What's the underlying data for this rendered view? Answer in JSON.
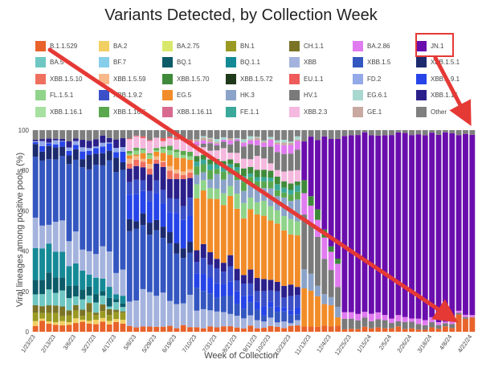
{
  "chart_data": {
    "type": "stacked-bar",
    "title": "Variants Detected, by Collection Week",
    "xlabel": "Week of Collection",
    "ylabel": "Viral lineages among positive pools (%)",
    "ylim": [
      0,
      100
    ],
    "yticks": [
      0,
      20,
      40,
      60,
      80,
      100
    ],
    "xtick_labels": [
      "1/23/23",
      "2/13/23",
      "3/6/23",
      "3/27/23",
      "4/17/23",
      "5/8/23",
      "5/29/23",
      "6/19/23",
      "7/10/23",
      "7/31/23",
      "8/21/23",
      "9/11/23",
      "10/2/23",
      "10/23/23",
      "11/13/23",
      "12/4/23",
      "12/25/23",
      "1/15/24",
      "2/5/24",
      "2/26/24",
      "3/18/24",
      "4/8/24",
      "4/22/24"
    ],
    "num_weeks": 66,
    "legend": [
      {
        "name": "B.1.1.529",
        "color": "#e8622a"
      },
      {
        "name": "BA.2",
        "color": "#f2cf63"
      },
      {
        "name": "BA.2.75",
        "color": "#d9e86a"
      },
      {
        "name": "BN.1",
        "color": "#9a9a23"
      },
      {
        "name": "CH.1.1",
        "color": "#7a7326"
      },
      {
        "name": "BA.2.86",
        "color": "#e07bf0"
      },
      {
        "name": "JN.1",
        "color": "#6a0dad"
      },
      {
        "name": "BA.5",
        "color": "#6fc7c3"
      },
      {
        "name": "BF.7",
        "color": "#87ceeb"
      },
      {
        "name": "BQ.1",
        "color": "#0c5b68"
      },
      {
        "name": "BQ.1.1",
        "color": "#148a96"
      },
      {
        "name": "XBB",
        "color": "#a4b3dd"
      },
      {
        "name": "XBB.1.5",
        "color": "#3456c0"
      },
      {
        "name": "XBB.1.5.1",
        "color": "#1c2a6e"
      },
      {
        "name": "XBB.1.5.10",
        "color": "#f07060"
      },
      {
        "name": "XBB.1.5.59",
        "color": "#f7b88a"
      },
      {
        "name": "XBB.1.5.70",
        "color": "#3f8a3a"
      },
      {
        "name": "XBB.1.5.72",
        "color": "#1f3a1a"
      },
      {
        "name": "EU.1.1",
        "color": "#ef5a5a"
      },
      {
        "name": "FD.2",
        "color": "#93a9e8"
      },
      {
        "name": "XBB.1.9.1",
        "color": "#2644e8"
      },
      {
        "name": "FL.1.5.1",
        "color": "#8fd48a"
      },
      {
        "name": "XBB.1.9.2",
        "color": "#3a4fc8"
      },
      {
        "name": "EG.5",
        "color": "#f28c28"
      },
      {
        "name": "HK.3",
        "color": "#8ba3c9"
      },
      {
        "name": "HV.1",
        "color": "#7a7a7a"
      },
      {
        "name": "EG.6.1",
        "color": "#a9d8d0"
      },
      {
        "name": "XBB.1.16",
        "color": "#2b1f8a"
      },
      {
        "name": "XBB.1.16.1",
        "color": "#a7e0a0"
      },
      {
        "name": "XBB.1.16.6",
        "color": "#5aa84e"
      },
      {
        "name": "XBB.1.16.11",
        "color": "#d86a8e"
      },
      {
        "name": "FE.1.1",
        "color": "#3aa89a"
      },
      {
        "name": "XBB.2.3",
        "color": "#f5b8de"
      },
      {
        "name": "GE.1",
        "color": "#c8a8a0"
      },
      {
        "name": "Other",
        "color": "#7f7f7f"
      }
    ],
    "highlighted_series": "JN.1"
  },
  "annotation_color": "#e53935"
}
